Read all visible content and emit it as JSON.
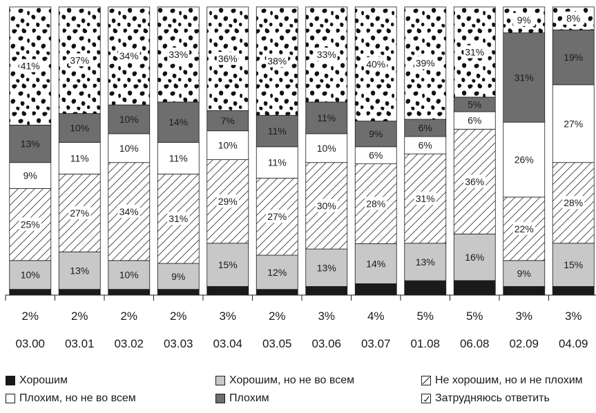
{
  "chart_data": {
    "type": "bar",
    "stacked": true,
    "categories": [
      "03.00",
      "03.01",
      "03.02",
      "03.03",
      "03.04",
      "03.05",
      "03.06",
      "03.07",
      "01.08",
      "06.08",
      "02.09",
      "04.09"
    ],
    "series": [
      {
        "name": "Хорошим",
        "color": "#1a1a1a",
        "pattern": "solid-black",
        "values": [
          2,
          2,
          2,
          2,
          3,
          2,
          3,
          4,
          5,
          5,
          3,
          3
        ],
        "labels": [
          "2%",
          "2%",
          "2%",
          "2%",
          "3%",
          "2%",
          "3%",
          "4%",
          "5%",
          "5%",
          "3%",
          "3%"
        ]
      },
      {
        "name": "Хорошим, но не во всем",
        "color": "#c8c8c8",
        "pattern": "solid-light-gray",
        "values": [
          10,
          13,
          10,
          9,
          15,
          12,
          13,
          14,
          13,
          16,
          9,
          15
        ],
        "labels": [
          "10%",
          "13%",
          "10%",
          "9%",
          "15%",
          "12%",
          "13%",
          "14%",
          "13%",
          "16%",
          "9%",
          "15%"
        ]
      },
      {
        "name": "Не хорошим, но и не плохим",
        "color": "#ffffff",
        "pattern": "diagonal-hatch",
        "values": [
          25,
          27,
          34,
          31,
          29,
          27,
          30,
          28,
          31,
          36,
          22,
          28
        ],
        "labels": [
          "25%",
          "27%",
          "34%",
          "31%",
          "29%",
          "27%",
          "30%",
          "28%",
          "31%",
          "36%",
          "22%",
          "28%"
        ]
      },
      {
        "name": "Плохим, но не во всем",
        "color": "#ffffff",
        "pattern": "white",
        "values": [
          9,
          11,
          10,
          11,
          10,
          11,
          10,
          6,
          6,
          6,
          26,
          27
        ],
        "labels": [
          "9%",
          "11%",
          "10%",
          "11%",
          "10%",
          "11%",
          "10%",
          "6%",
          "6%",
          "6%",
          "26%",
          "27%"
        ]
      },
      {
        "name": "Плохим",
        "color": "#6e6e6e",
        "pattern": "solid-dark-gray",
        "values": [
          13,
          10,
          10,
          14,
          7,
          11,
          11,
          9,
          6,
          5,
          31,
          19
        ],
        "labels": [
          "13%",
          "10%",
          "10%",
          "14%",
          "7%",
          "11%",
          "11%",
          "9%",
          "6%",
          "5%",
          "31%",
          "19%"
        ]
      },
      {
        "name": "Затрудняюсь ответить",
        "color": "#ffffff",
        "pattern": "black-blotches",
        "values": [
          41,
          37,
          34,
          33,
          36,
          38,
          33,
          40,
          39,
          31,
          9,
          8
        ],
        "labels": [
          "41%",
          "37%",
          "34%",
          "33%",
          "36%",
          "38%",
          "33%",
          "40%",
          "39%",
          "31%",
          "9%",
          "8%"
        ]
      }
    ],
    "bottom_labels": [
      "2%",
      "2%",
      "2%",
      "2%",
      "3%",
      "2%",
      "3%",
      "4%",
      "5%",
      "5%",
      "3%",
      "3%"
    ],
    "legend_position": "bottom",
    "title": "",
    "xlabel": "",
    "ylabel": ""
  }
}
